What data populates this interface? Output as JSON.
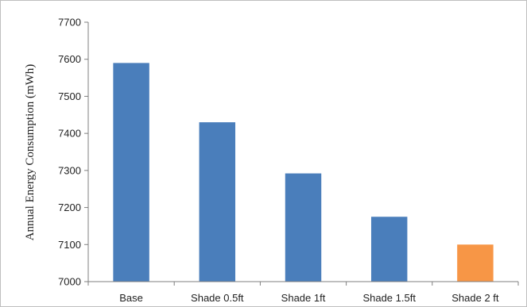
{
  "chart_data": {
    "type": "bar",
    "title": "",
    "xlabel": "",
    "ylabel": "Annual Energy Consumption (mWh)",
    "categories": [
      "Base",
      "Shade 0.5ft",
      "Shade 1ft",
      "Shade 1.5ft",
      "Shade 2 ft"
    ],
    "values": [
      7590,
      7430,
      7292,
      7175,
      7100
    ],
    "bar_colors": [
      "#4a7ebb",
      "#4a7ebb",
      "#4a7ebb",
      "#4a7ebb",
      "#f79646"
    ],
    "ylim": [
      7000,
      7700
    ],
    "yticks": [
      7000,
      7100,
      7200,
      7300,
      7400,
      7500,
      7600,
      7700
    ],
    "grid": false,
    "legend": "none"
  }
}
